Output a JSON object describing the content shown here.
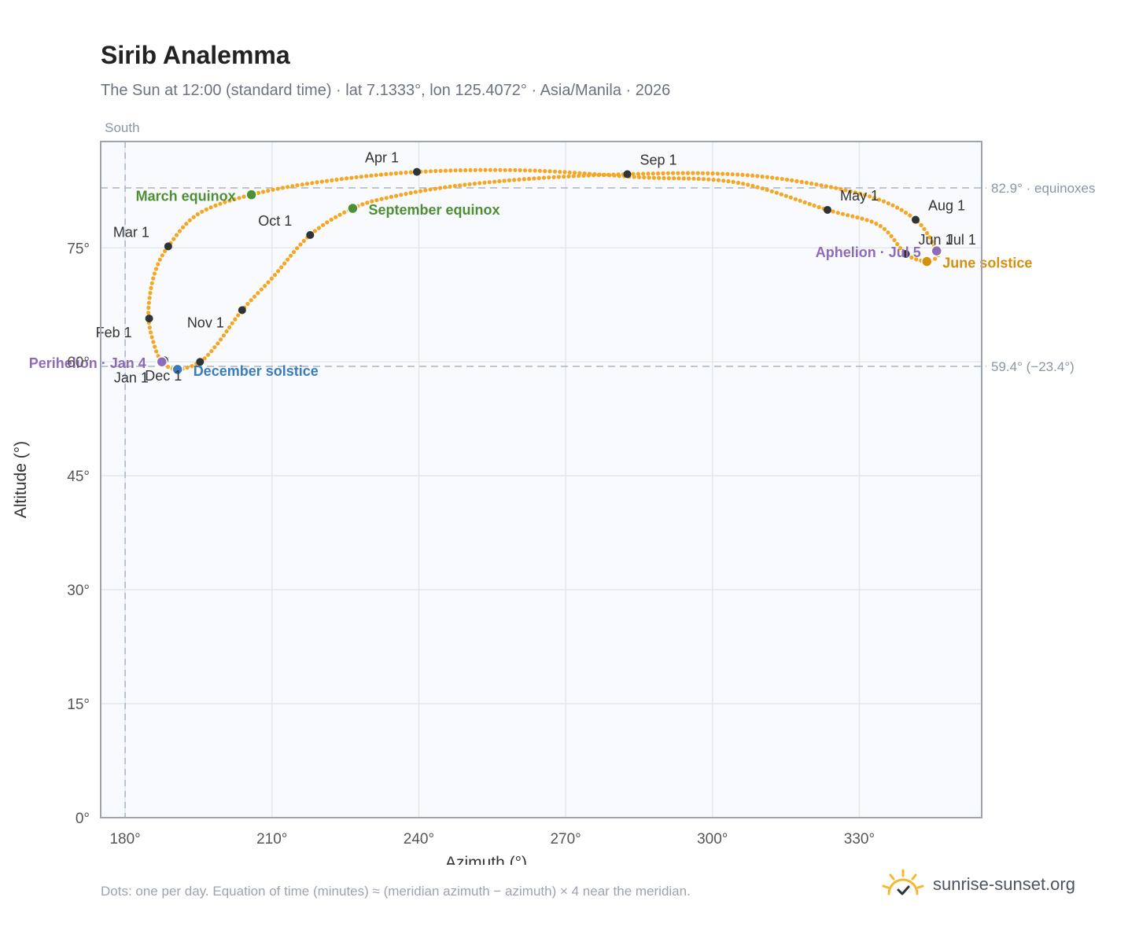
{
  "title": "Sirib Analemma",
  "subtitle": "The Sun at 12:00 (standard time) · lat 7.1333°, lon 125.4072° · Asia/Manila · 2026",
  "footnote": "Dots: one per day. Equation of time (minutes) ≈ (meridian azimuth − azimuth) × 4 near the meridian.",
  "brand": {
    "text": "sunrise-sunset.org",
    "icon": "sun-icon",
    "color": "#f5b82e"
  },
  "colors": {
    "path": "#f5a623",
    "month_marker": "#2d3436",
    "equinox": "#4e8f34",
    "december_solstice": "#3b7cbf",
    "june_solstice": "#d4900f",
    "perihelion": "#8e6bb8",
    "plot_bg": "#f8fafd",
    "grid": "#e3e8ee",
    "reference": "#a9b6c4"
  },
  "chart_data": {
    "type": "scatter",
    "xlabel": "Azimuth (°)",
    "ylabel": "Altitude (°)",
    "xlim": [
      175,
      355
    ],
    "ylim": [
      0,
      89
    ],
    "xticks": [
      180,
      210,
      240,
      270,
      300,
      330
    ],
    "xtick_labels": [
      "180°",
      "210°",
      "240°",
      "270°",
      "300°",
      "330°"
    ],
    "yticks": [
      0,
      15,
      30,
      45,
      60,
      75
    ],
    "ytick_labels": [
      "0°",
      "15°",
      "30°",
      "45°",
      "60°",
      "75°"
    ],
    "grid": true,
    "meridian": {
      "azimuth": 180,
      "label": "South"
    },
    "reference_lines": [
      {
        "altitude": 82.9,
        "label": "82.9° · equinoxes"
      },
      {
        "altitude": 59.4,
        "label": "59.4° (−23.4°)"
      }
    ],
    "curve_nodes": [
      {
        "az": 190.7,
        "alt": 59.0
      },
      {
        "az": 187.5,
        "alt": 60.0
      },
      {
        "az": 185.8,
        "alt": 62.5
      },
      {
        "az": 184.8,
        "alt": 65.5
      },
      {
        "az": 185.0,
        "alt": 68.5
      },
      {
        "az": 186.2,
        "alt": 72.0
      },
      {
        "az": 188.8,
        "alt": 75.2
      },
      {
        "az": 195.0,
        "alt": 79.5
      },
      {
        "az": 205.8,
        "alt": 82.0
      },
      {
        "az": 220.0,
        "alt": 83.7
      },
      {
        "az": 239.6,
        "alt": 85.0
      },
      {
        "az": 262.0,
        "alt": 85.2
      },
      {
        "az": 285.0,
        "alt": 84.3
      },
      {
        "az": 305.0,
        "alt": 83.6
      },
      {
        "az": 323.5,
        "alt": 80.0
      },
      {
        "az": 334.0,
        "alt": 78.0
      },
      {
        "az": 339.5,
        "alt": 74.2
      },
      {
        "az": 343.8,
        "alt": 73.2
      },
      {
        "az": 345.5,
        "alt": 73.6
      },
      {
        "az": 345.8,
        "alt": 74.6
      },
      {
        "az": 341.5,
        "alt": 78.7
      },
      {
        "az": 332.0,
        "alt": 81.8
      },
      {
        "az": 315.0,
        "alt": 84.0
      },
      {
        "az": 300.0,
        "alt": 84.8
      },
      {
        "az": 282.6,
        "alt": 84.7
      },
      {
        "az": 265.0,
        "alt": 84.2
      },
      {
        "az": 248.0,
        "alt": 83.2
      },
      {
        "az": 235.0,
        "alt": 81.8
      },
      {
        "az": 226.5,
        "alt": 80.2
      },
      {
        "az": 217.8,
        "alt": 76.7
      },
      {
        "az": 210.0,
        "alt": 71.0
      },
      {
        "az": 203.9,
        "alt": 66.8
      },
      {
        "az": 199.0,
        "alt": 62.5
      },
      {
        "az": 195.3,
        "alt": 60.0
      },
      {
        "az": 190.7,
        "alt": 59.0
      }
    ],
    "month_markers": [
      {
        "label": "Jan 1",
        "az": 188.0,
        "alt": 60.2,
        "dx": -64,
        "dy": 28
      },
      {
        "label": "Feb 1",
        "az": 184.9,
        "alt": 65.7,
        "dx": -68,
        "dy": 24
      },
      {
        "label": "Mar 1",
        "az": 188.8,
        "alt": 75.2,
        "dx": -70,
        "dy": -12
      },
      {
        "label": "Apr 1",
        "az": 239.6,
        "alt": 85.0,
        "dx": -66,
        "dy": -12
      },
      {
        "label": "May 1",
        "az": 323.5,
        "alt": 80.0,
        "dx": 16,
        "dy": -12
      },
      {
        "label": "Jun 1",
        "az": 339.5,
        "alt": 74.2,
        "dx": 16,
        "dy": -12
      },
      {
        "label": "Jul 1",
        "az": 345.5,
        "alt": 74.6,
        "dx": 14,
        "dy": -8
      },
      {
        "label": "Aug 1",
        "az": 341.5,
        "alt": 78.7,
        "dx": 16,
        "dy": -12
      },
      {
        "label": "Sep 1",
        "az": 282.6,
        "alt": 84.7,
        "dx": 16,
        "dy": -12
      },
      {
        "label": "Oct 1",
        "az": 217.8,
        "alt": 76.7,
        "dx": -66,
        "dy": -12
      },
      {
        "label": "Nov 1",
        "az": 203.9,
        "alt": 66.8,
        "dx": -70,
        "dy": 22
      },
      {
        "label": "Dec 1",
        "az": 195.3,
        "alt": 60.0,
        "dx": -70,
        "dy": 24
      }
    ],
    "key_events": [
      {
        "label": "March equinox",
        "az": 205.8,
        "alt": 82.0,
        "color": "#4e8f34",
        "anchor": "end",
        "dx": -20,
        "dy": 8
      },
      {
        "label": "September equinox",
        "az": 226.5,
        "alt": 80.2,
        "color": "#4e8f34",
        "anchor": "start",
        "dx": 20,
        "dy": 8
      },
      {
        "label": "June solstice",
        "az": 343.8,
        "alt": 73.2,
        "color": "#d4900f",
        "anchor": "start",
        "dx": 20,
        "dy": 8
      },
      {
        "label": "December solstice",
        "az": 190.7,
        "alt": 59.0,
        "color": "#3b7cbf",
        "anchor": "start",
        "dx": 20,
        "dy": 8
      },
      {
        "label": "Perihelion · Jan 4",
        "az": 187.5,
        "alt": 60.0,
        "color": "#8e6bb8",
        "anchor": "end",
        "dx": -20,
        "dy": 8
      },
      {
        "label": "Aphelion · Jul 5",
        "az": 345.8,
        "alt": 74.6,
        "color": "#8e6bb8",
        "anchor": "end",
        "dx": -20,
        "dy": 8
      }
    ]
  }
}
